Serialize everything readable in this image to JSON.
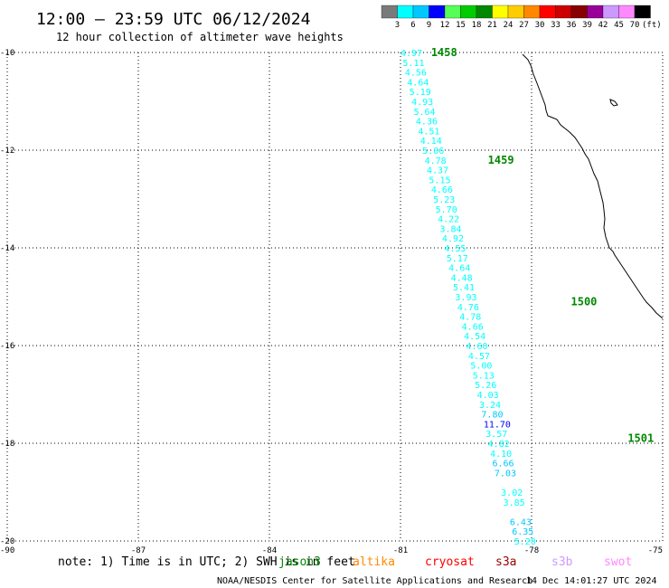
{
  "header": {
    "title": "12:00 – 23:59 UTC 06/12/2024",
    "subtitle": "12 hour collection of altimeter wave heights"
  },
  "scale": {
    "unit": "(ft)",
    "ticks": [
      "3",
      "6",
      "9",
      "12",
      "15",
      "18",
      "21",
      "24",
      "27",
      "30",
      "33",
      "36",
      "39",
      "42",
      "45",
      "70"
    ],
    "colors": [
      "#7a7a7a",
      "#00ffff",
      "#00c8ff",
      "#0000ff",
      "#55ff55",
      "#00cc00",
      "#008800",
      "#ffff00",
      "#ffcc00",
      "#ff8800",
      "#ff0000",
      "#cc0000",
      "#880000",
      "#990099",
      "#cc99ff",
      "#ff88ff",
      "#000000"
    ]
  },
  "axes": {
    "x_ticks": [
      "-90",
      "-87",
      "-84",
      "-81",
      "-78",
      "-75"
    ],
    "y_ticks": [
      "-10",
      "-12",
      "-14",
      "-16",
      "-18",
      "-20"
    ]
  },
  "footer": {
    "note": "note: 1) Time is in UTC; 2) SWH is in feet",
    "satellites": [
      {
        "name": "jason3",
        "color": "#008800"
      },
      {
        "name": "altika",
        "color": "#ff8800"
      },
      {
        "name": "cryosat",
        "color": "#ff0000"
      },
      {
        "name": "s3a",
        "color": "#990000"
      },
      {
        "name": "s3b",
        "color": "#cc99ff"
      },
      {
        "name": "swot",
        "color": "#ff88ff"
      }
    ],
    "credit": "NOAA/NESDIS Center for Satellite Applications and Research",
    "timestamp": "14 Dec 14:01:27 UTC 2024"
  },
  "chart_data": {
    "type": "scatter",
    "title": "12:00 – 23:59 UTC 06/12/2024",
    "subtitle": "12 hour collection of altimeter wave heights",
    "xlim": [
      -90,
      -75
    ],
    "ylim": [
      -20,
      -10
    ],
    "grid": true,
    "time_labels": [
      {
        "label": "1458",
        "lon": -80.3,
        "lat": -10.0
      },
      {
        "label": "1459",
        "lon": -79.0,
        "lat": -12.2
      },
      {
        "label": "1500",
        "lon": -77.1,
        "lat": -15.1
      },
      {
        "label": "1501",
        "lon": -75.8,
        "lat": -17.9
      }
    ],
    "points": [
      {
        "lon": -81.0,
        "lat": -10.0,
        "v": "4.97"
      },
      {
        "lon": -80.95,
        "lat": -10.2,
        "v": "5.11"
      },
      {
        "lon": -80.9,
        "lat": -10.4,
        "v": "4.56"
      },
      {
        "lon": -80.85,
        "lat": -10.6,
        "v": "4.64"
      },
      {
        "lon": -80.8,
        "lat": -10.8,
        "v": "5.19"
      },
      {
        "lon": -80.75,
        "lat": -11.0,
        "v": "4.93"
      },
      {
        "lon": -80.7,
        "lat": -11.2,
        "v": "5.64"
      },
      {
        "lon": -80.65,
        "lat": -11.4,
        "v": "4.36"
      },
      {
        "lon": -80.6,
        "lat": -11.6,
        "v": "4.51"
      },
      {
        "lon": -80.55,
        "lat": -11.8,
        "v": "4.14"
      },
      {
        "lon": -80.5,
        "lat": -12.0,
        "v": "5.06"
      },
      {
        "lon": -80.45,
        "lat": -12.2,
        "v": "4.78"
      },
      {
        "lon": -80.4,
        "lat": -12.4,
        "v": "4.37"
      },
      {
        "lon": -80.35,
        "lat": -12.6,
        "v": "5.15"
      },
      {
        "lon": -80.3,
        "lat": -12.8,
        "v": "4.66"
      },
      {
        "lon": -80.25,
        "lat": -13.0,
        "v": "5.23"
      },
      {
        "lon": -80.2,
        "lat": -13.2,
        "v": "5.70"
      },
      {
        "lon": -80.15,
        "lat": -13.4,
        "v": "4.22"
      },
      {
        "lon": -80.1,
        "lat": -13.6,
        "v": "3.84"
      },
      {
        "lon": -80.05,
        "lat": -13.8,
        "v": "4.92"
      },
      {
        "lon": -80.0,
        "lat": -14.0,
        "v": "4.55"
      },
      {
        "lon": -79.95,
        "lat": -14.2,
        "v": "5.17"
      },
      {
        "lon": -79.9,
        "lat": -14.4,
        "v": "4.64"
      },
      {
        "lon": -79.85,
        "lat": -14.6,
        "v": "4.48"
      },
      {
        "lon": -79.8,
        "lat": -14.8,
        "v": "5.41"
      },
      {
        "lon": -79.75,
        "lat": -15.0,
        "v": "3.93"
      },
      {
        "lon": -79.7,
        "lat": -15.2,
        "v": "4.76"
      },
      {
        "lon": -79.65,
        "lat": -15.4,
        "v": "4.78"
      },
      {
        "lon": -79.6,
        "lat": -15.6,
        "v": "4.66"
      },
      {
        "lon": -79.55,
        "lat": -15.8,
        "v": "4.54"
      },
      {
        "lon": -79.5,
        "lat": -16.0,
        "v": "4.60"
      },
      {
        "lon": -79.45,
        "lat": -16.2,
        "v": "4.57"
      },
      {
        "lon": -79.4,
        "lat": -16.4,
        "v": "5.00"
      },
      {
        "lon": -79.35,
        "lat": -16.6,
        "v": "5.13"
      },
      {
        "lon": -79.3,
        "lat": -16.8,
        "v": "5.26"
      },
      {
        "lon": -79.25,
        "lat": -17.0,
        "v": "4.03"
      },
      {
        "lon": -79.2,
        "lat": -17.2,
        "v": "3.24"
      },
      {
        "lon": -79.15,
        "lat": -17.4,
        "v": "7.80"
      },
      {
        "lon": -79.1,
        "lat": -17.6,
        "v": "11.70"
      },
      {
        "lon": -79.05,
        "lat": -17.8,
        "v": "3.57"
      },
      {
        "lon": -79.0,
        "lat": -18.0,
        "v": "4.82"
      },
      {
        "lon": -78.95,
        "lat": -18.2,
        "v": "4.10"
      },
      {
        "lon": -78.9,
        "lat": -18.4,
        "v": "6.66"
      },
      {
        "lon": -78.85,
        "lat": -18.6,
        "v": "7.03"
      },
      {
        "lon": -78.7,
        "lat": -19.0,
        "v": "3.02"
      },
      {
        "lon": -78.65,
        "lat": -19.2,
        "v": "3.85"
      },
      {
        "lon": -78.5,
        "lat": -19.6,
        "v": "6.43"
      },
      {
        "lon": -78.45,
        "lat": -19.8,
        "v": "6.35"
      },
      {
        "lon": -78.4,
        "lat": -20.0,
        "v": "5.20"
      }
    ]
  }
}
